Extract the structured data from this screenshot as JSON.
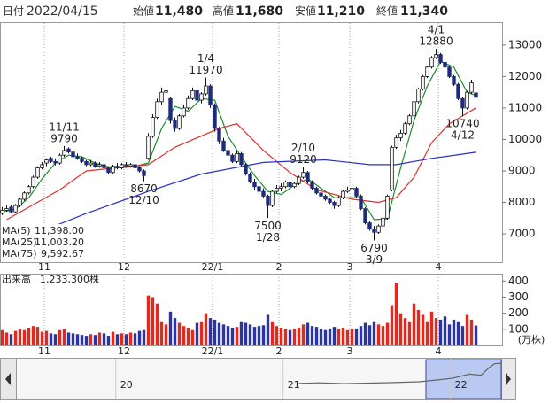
{
  "chart_data": {
    "type": "candlestick",
    "header": [
      {
        "label": "日付",
        "value": "2022/04/15"
      },
      {
        "label": "始値",
        "value": "11,480"
      },
      {
        "label": "高値",
        "value": "11,680",
        "color": "#e0201a"
      },
      {
        "label": "安値",
        "value": "11,210",
        "color": "#109a2a"
      },
      {
        "label": "終値",
        "value": "11,340"
      }
    ],
    "ohlc": [
      [
        7650,
        7850,
        7600,
        7750
      ],
      [
        7750,
        7900,
        7700,
        7800
      ],
      [
        7850,
        7900,
        7650,
        7700
      ],
      [
        7700,
        7950,
        7680,
        7900
      ],
      [
        7900,
        8150,
        7850,
        8100
      ],
      [
        8100,
        8350,
        8050,
        8300
      ],
      [
        8300,
        8550,
        8250,
        8500
      ],
      [
        8500,
        8850,
        8450,
        8800
      ],
      [
        8800,
        9150,
        8750,
        9100
      ],
      [
        9100,
        9280,
        9050,
        9200
      ],
      [
        9250,
        9400,
        9150,
        9350
      ],
      [
        9400,
        9450,
        9250,
        9300
      ],
      [
        9300,
        9400,
        9180,
        9250
      ],
      [
        9250,
        9550,
        9200,
        9500
      ],
      [
        9500,
        9790,
        9450,
        9650
      ],
      [
        9700,
        9750,
        9550,
        9600
      ],
      [
        9600,
        9650,
        9400,
        9450
      ],
      [
        9450,
        9550,
        9350,
        9400
      ],
      [
        9400,
        9450,
        9250,
        9300
      ],
      [
        9300,
        9350,
        9150,
        9200
      ],
      [
        9200,
        9350,
        9150,
        9250
      ],
      [
        9250,
        9300,
        9100,
        9150
      ],
      [
        9150,
        9280,
        9100,
        9200
      ],
      [
        9200,
        9250,
        9050,
        9100
      ],
      [
        9100,
        9150,
        8900,
        8950
      ],
      [
        8950,
        9200,
        8900,
        9150
      ],
      [
        9150,
        9250,
        9050,
        9100
      ],
      [
        9100,
        9250,
        9050,
        9200
      ],
      [
        9200,
        9280,
        9100,
        9150
      ],
      [
        9150,
        9250,
        9100,
        9200
      ],
      [
        9200,
        9250,
        9050,
        9100
      ],
      [
        9100,
        9150,
        8950,
        9000
      ],
      [
        9000,
        9050,
        8670,
        8850
      ],
      [
        9400,
        10200,
        9350,
        10100
      ],
      [
        10100,
        10800,
        10050,
        10700
      ],
      [
        10700,
        11300,
        10650,
        11200
      ],
      [
        11200,
        11650,
        11100,
        11500
      ],
      [
        11500,
        11700,
        11400,
        11550
      ],
      [
        11300,
        11350,
        10500,
        10600
      ],
      [
        10600,
        10700,
        10250,
        10350
      ],
      [
        10350,
        10800,
        10300,
        10750
      ],
      [
        10750,
        11100,
        10700,
        11000
      ],
      [
        11000,
        11400,
        10950,
        11300
      ],
      [
        11300,
        11650,
        11250,
        11550
      ],
      [
        11550,
        11600,
        11200,
        11250
      ],
      [
        11250,
        11500,
        11150,
        11450
      ],
      [
        11450,
        11970,
        11400,
        11700
      ],
      [
        11700,
        11750,
        11000,
        11100
      ],
      [
        11100,
        11150,
        10250,
        10350
      ],
      [
        10350,
        10400,
        9850,
        9950
      ],
      [
        9950,
        10050,
        9600,
        9650
      ],
      [
        9650,
        9750,
        9400,
        9500
      ],
      [
        9500,
        9550,
        9250,
        9300
      ],
      [
        9300,
        9650,
        9250,
        9550
      ],
      [
        9550,
        9600,
        9150,
        9200
      ],
      [
        9200,
        9250,
        8850,
        8900
      ],
      [
        8900,
        8950,
        8600,
        8650
      ],
      [
        8650,
        8750,
        8400,
        8500
      ],
      [
        8500,
        8550,
        8300,
        8350
      ],
      [
        8350,
        8450,
        8150,
        8200
      ],
      [
        8200,
        8250,
        7500,
        7900
      ],
      [
        7900,
        8400,
        7850,
        8350
      ],
      [
        8350,
        8550,
        8300,
        8450
      ],
      [
        8450,
        8600,
        8350,
        8500
      ],
      [
        8500,
        8700,
        8450,
        8650
      ],
      [
        8650,
        8700,
        8450,
        8500
      ],
      [
        8500,
        8650,
        8450,
        8600
      ],
      [
        8600,
        8850,
        8550,
        8800
      ],
      [
        8800,
        9120,
        8750,
        8950
      ],
      [
        8950,
        9000,
        8600,
        8650
      ],
      [
        8650,
        8700,
        8400,
        8450
      ],
      [
        8450,
        8500,
        8250,
        8300
      ],
      [
        8300,
        8350,
        8150,
        8200
      ],
      [
        8200,
        8250,
        8050,
        8100
      ],
      [
        8100,
        8150,
        7950,
        8000
      ],
      [
        8000,
        8050,
        7800,
        7900
      ],
      [
        7900,
        8200,
        7850,
        8150
      ],
      [
        8150,
        8400,
        8100,
        8350
      ],
      [
        8350,
        8500,
        8300,
        8400
      ],
      [
        8400,
        8550,
        8350,
        8450
      ],
      [
        8450,
        8500,
        8150,
        8200
      ],
      [
        8200,
        8250,
        7750,
        7800
      ],
      [
        7800,
        7850,
        7300,
        7350
      ],
      [
        7350,
        7400,
        7100,
        7150
      ],
      [
        7150,
        7250,
        6790,
        7050
      ],
      [
        7050,
        7300,
        7000,
        7250
      ],
      [
        7250,
        7550,
        7200,
        7500
      ],
      [
        7500,
        8250,
        7450,
        8200
      ],
      [
        8400,
        9800,
        8350,
        9750
      ],
      [
        9750,
        10150,
        9700,
        10050
      ],
      [
        10050,
        10300,
        9950,
        10200
      ],
      [
        10200,
        10550,
        10150,
        10500
      ],
      [
        10500,
        10800,
        10450,
        10750
      ],
      [
        10750,
        11250,
        10700,
        11200
      ],
      [
        11200,
        11650,
        11150,
        11600
      ],
      [
        11600,
        12050,
        11550,
        12000
      ],
      [
        12000,
        12350,
        11950,
        12300
      ],
      [
        12300,
        12650,
        12250,
        12600
      ],
      [
        12600,
        12880,
        12550,
        12700
      ],
      [
        12700,
        12750,
        12400,
        12450
      ],
      [
        12450,
        12550,
        12250,
        12300
      ],
      [
        12300,
        12350,
        11950,
        12000
      ],
      [
        12000,
        12050,
        11700,
        11750
      ],
      [
        11750,
        11800,
        11250,
        11300
      ],
      [
        11300,
        11350,
        10740,
        11000
      ],
      [
        11000,
        11550,
        10950,
        11500
      ],
      [
        11500,
        11900,
        11450,
        11800
      ],
      [
        11480,
        11680,
        11210,
        11340
      ]
    ],
    "up_color": "#ffffff",
    "down_color": "#1f2a7a",
    "xticks": [
      {
        "value": 10,
        "label": "11"
      },
      {
        "value": 28,
        "label": "12"
      },
      {
        "value": 48,
        "label": "22/1"
      },
      {
        "value": 63,
        "label": "2"
      },
      {
        "value": 79,
        "label": "3"
      },
      {
        "value": 99,
        "label": "4"
      }
    ],
    "ylim": [
      6100,
      13700
    ],
    "yticks": [
      7000,
      8000,
      9000,
      10000,
      11000,
      12000,
      13000
    ],
    "ma": [
      {
        "name": "MA(5)",
        "color": "#1e8c2a",
        "value_label": "11,398.00",
        "x": [
          0,
          3,
          6,
          9,
          12,
          15,
          18,
          21,
          24,
          27,
          30,
          33,
          36,
          39,
          42,
          45,
          48,
          51,
          54,
          57,
          60,
          63,
          66,
          69,
          72,
          75,
          78,
          81,
          84,
          87,
          90,
          93,
          96,
          99,
          102,
          105,
          107
        ],
        "values": [
          7700,
          7780,
          8150,
          8750,
          9250,
          9500,
          9450,
          9250,
          9130,
          9100,
          9150,
          9250,
          10350,
          11050,
          10900,
          11300,
          11250,
          10100,
          9450,
          8850,
          8350,
          8250,
          8550,
          8750,
          8450,
          8150,
          8150,
          8150,
          7450,
          7480,
          9100,
          10600,
          11700,
          12480,
          12300,
          11500,
          11398
        ]
      },
      {
        "name": "MA(25)",
        "color": "#e0302a",
        "value_label": "11,003.20",
        "x": [
          1,
          13,
          19,
          33,
          39,
          49,
          53,
          59,
          65,
          71,
          79,
          85,
          89,
          93,
          97,
          101,
          107
        ],
        "values": [
          7450,
          8400,
          9000,
          9200,
          9750,
          10350,
          10500,
          9650,
          8950,
          8400,
          8100,
          8000,
          8150,
          8800,
          9900,
          10500,
          11003.2
        ]
      },
      {
        "name": "MA(75)",
        "color": "#2830c8",
        "value_label": "9,592.67",
        "x": [
          3,
          19,
          33,
          45,
          59,
          73,
          83,
          89,
          97,
          107
        ],
        "values": [
          6750,
          7650,
          8350,
          8900,
          9270,
          9350,
          9200,
          9200,
          9400,
          9592.67
        ]
      }
    ],
    "annotations": [
      {
        "index": 14,
        "date": "11/11",
        "price": 9790,
        "position": "above"
      },
      {
        "index": 32,
        "date": "12/10",
        "price": 8670,
        "position": "below"
      },
      {
        "index": 46,
        "date": "1/4",
        "price": 11970,
        "position": "above"
      },
      {
        "index": 60,
        "date": "1/28",
        "price": 7500,
        "position": "below"
      },
      {
        "index": 68,
        "date": "2/10",
        "price": 9120,
        "position": "above"
      },
      {
        "index": 84,
        "date": "3/9",
        "price": 6790,
        "position": "below"
      },
      {
        "index": 98,
        "date": "4/1",
        "price": 12880,
        "position": "above"
      },
      {
        "index": 104,
        "date": "4/12",
        "price": 10740,
        "position": "below"
      }
    ],
    "volume": {
      "label": "出来高",
      "value_label": "1,233,300株",
      "unit": "(万株)",
      "ylim": [
        0,
        440
      ],
      "yticks": [
        100,
        200,
        300,
        400
      ],
      "up_color": "#e02a1f",
      "down_color": "#2a35a0",
      "values": [
        95,
        80,
        70,
        90,
        100,
        95,
        110,
        120,
        115,
        85,
        90,
        75,
        70,
        95,
        100,
        80,
        75,
        70,
        65,
        60,
        70,
        65,
        80,
        75,
        60,
        85,
        70,
        75,
        70,
        80,
        75,
        90,
        95,
        310,
        300,
        260,
        150,
        130,
        210,
        170,
        140,
        120,
        110,
        95,
        140,
        150,
        200,
        170,
        160,
        140,
        130,
        120,
        110,
        115,
        150,
        140,
        130,
        115,
        120,
        125,
        190,
        150,
        120,
        110,
        100,
        95,
        105,
        110,
        130,
        140,
        120,
        115,
        100,
        95,
        105,
        115,
        100,
        110,
        95,
        100,
        105,
        120,
        140,
        125,
        150,
        130,
        120,
        140,
        250,
        390,
        200,
        170,
        150,
        260,
        220,
        190,
        150,
        210,
        170,
        160,
        180,
        130,
        160,
        150,
        120,
        190,
        160,
        123.33
      ]
    },
    "navigator": {
      "xlim": [
        2019.35,
        2022.24
      ],
      "xticks": [
        {
          "value": 2020,
          "label": "20"
        },
        {
          "value": 2021,
          "label": "21"
        },
        {
          "value": 2022,
          "label": "22"
        }
      ],
      "ylim": [
        0,
        14000
      ],
      "x": [
        2021.03,
        2021.15,
        2021.3,
        2021.45,
        2021.6,
        2021.75,
        2021.85,
        2021.95,
        2022.05,
        2022.12,
        2022.17,
        2022.2,
        2022.24
      ],
      "values": [
        5600,
        5800,
        5500,
        5700,
        5900,
        6200,
        6800,
        7500,
        9000,
        8600,
        11500,
        12800,
        13000
      ],
      "selection": [
        2021.79,
        2022.24
      ]
    }
  }
}
